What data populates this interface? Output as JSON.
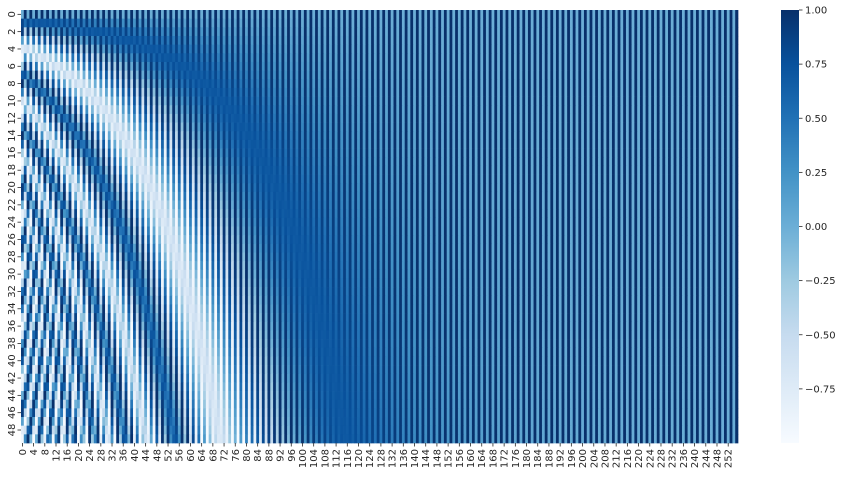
{
  "chart_data": {
    "type": "heatmap",
    "title": "",
    "xlabel": "",
    "ylabel": "",
    "rows": 50,
    "cols": 256,
    "x_tick_labels": [
      "0",
      "4",
      "8",
      "12",
      "16",
      "20",
      "24",
      "28",
      "32",
      "36",
      "40",
      "44",
      "48",
      "52",
      "56",
      "60",
      "64",
      "68",
      "72",
      "76",
      "80",
      "84",
      "88",
      "92",
      "96",
      "100",
      "104",
      "108",
      "112",
      "116",
      "120",
      "124",
      "128",
      "132",
      "136",
      "140",
      "144",
      "148",
      "152",
      "156",
      "160",
      "164",
      "168",
      "172",
      "176",
      "180",
      "184",
      "188",
      "192",
      "196",
      "200",
      "204",
      "208",
      "212",
      "216",
      "220",
      "224",
      "228",
      "232",
      "236",
      "240",
      "244",
      "248",
      "252"
    ],
    "y_tick_labels": [
      "0",
      "2",
      "4",
      "6",
      "8",
      "10",
      "12",
      "14",
      "16",
      "18",
      "20",
      "22",
      "24",
      "26",
      "28",
      "30",
      "32",
      "34",
      "36",
      "38",
      "40",
      "42",
      "44",
      "46",
      "48"
    ],
    "colorbar": {
      "min": -1.0,
      "max": 1.0,
      "tick_labels": [
        "1.00",
        "0.75",
        "0.50",
        "0.25",
        "0.00",
        "−0.25",
        "−0.50",
        "−0.75"
      ],
      "tick_values": [
        1.0,
        0.75,
        0.5,
        0.25,
        0.0,
        -0.25,
        -0.5,
        -0.75
      ]
    },
    "colormap": "Blues",
    "colormap_stops": [
      "#f7fbff",
      "#deebf7",
      "#c6dbef",
      "#9ecae1",
      "#6baed6",
      "#4292c6",
      "#2171b5",
      "#08519c",
      "#08306b"
    ],
    "grid": false,
    "legend": "colorbar-right"
  }
}
